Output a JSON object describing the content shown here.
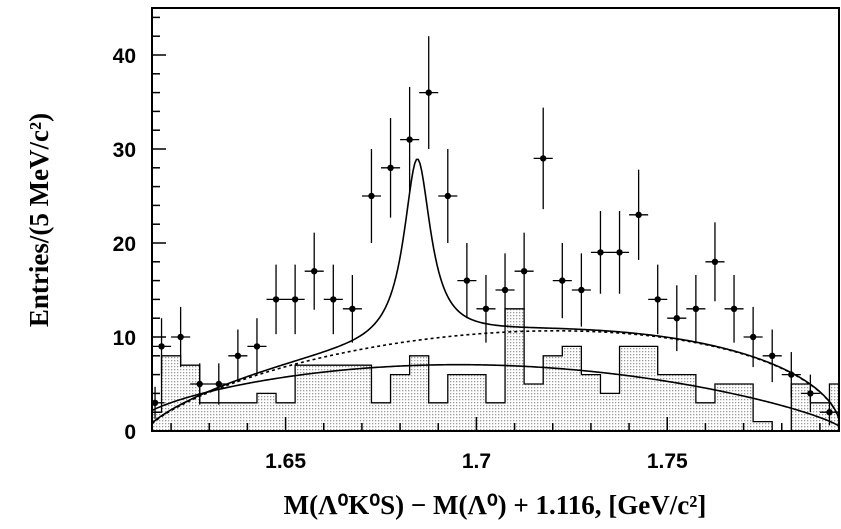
{
  "chart_data": {
    "type": "histogram_with_points",
    "xlabel": "M(Λ⁰K⁰S) − M(Λ⁰) + 1.116,   [GeV/c²]",
    "ylabel": "Entries/(5 MeV/c²)",
    "xlim": [
      1.615,
      1.795
    ],
    "ylim": [
      0,
      45
    ],
    "xticks": [
      1.65,
      1.7,
      1.75
    ],
    "xtick_labels": [
      "1.65",
      "1.7",
      "1.75"
    ],
    "yticks": [
      0,
      10,
      20,
      30,
      40
    ],
    "ytick_labels": [
      "0",
      "10",
      "20",
      "30",
      "40"
    ],
    "bin_width": 0.005,
    "data_points": {
      "x": [
        1.6175,
        1.6225,
        1.6275,
        1.6325,
        1.6375,
        1.6425,
        1.6475,
        1.6525,
        1.6575,
        1.6625,
        1.6675,
        1.6725,
        1.6775,
        1.6825,
        1.6875,
        1.6925,
        1.6975,
        1.7025,
        1.7075,
        1.7125,
        1.7175,
        1.7225,
        1.7275,
        1.7325,
        1.7375,
        1.7425,
        1.7475,
        1.7525,
        1.7575,
        1.7625,
        1.7675,
        1.7725,
        1.7775,
        1.7825,
        1.7875,
        1.7925
      ],
      "y": [
        9,
        10,
        5,
        5,
        8,
        9,
        14,
        14,
        17,
        14,
        13,
        25,
        28,
        31,
        36,
        25,
        16,
        13,
        15,
        17,
        29,
        16,
        15,
        19,
        19,
        23,
        14,
        12,
        13,
        18,
        13,
        10,
        8,
        6,
        4,
        2
      ],
      "yerr": [
        3,
        3.2,
        2.2,
        2.2,
        2.8,
        3,
        3.7,
        3.7,
        4.1,
        3.7,
        3.6,
        5,
        5.3,
        5.6,
        6,
        5,
        4,
        3.6,
        3.9,
        4.1,
        5.4,
        4,
        3.9,
        4.4,
        4.4,
        4.8,
        3.7,
        3.5,
        3.6,
        4.2,
        3.6,
        3.2,
        2.8,
        2.4,
        2,
        1.4
      ]
    },
    "point_start": {
      "x": 1.6125,
      "y": 3,
      "yerr": 1.7
    },
    "background_histogram": {
      "edges_start": 1.6125,
      "values": [
        2,
        8,
        7,
        3,
        3,
        3,
        4,
        3,
        7,
        7,
        7,
        7,
        3,
        6,
        8,
        3,
        6,
        6,
        3,
        13,
        5,
        8,
        9,
        6,
        4,
        9,
        9,
        6,
        6,
        3,
        5,
        5,
        1,
        0,
        5,
        3,
        5,
        1
      ]
    },
    "curves": [
      {
        "style": "solid"
      },
      {
        "style": "dotted"
      },
      {
        "style": "solid-background"
      }
    ]
  }
}
